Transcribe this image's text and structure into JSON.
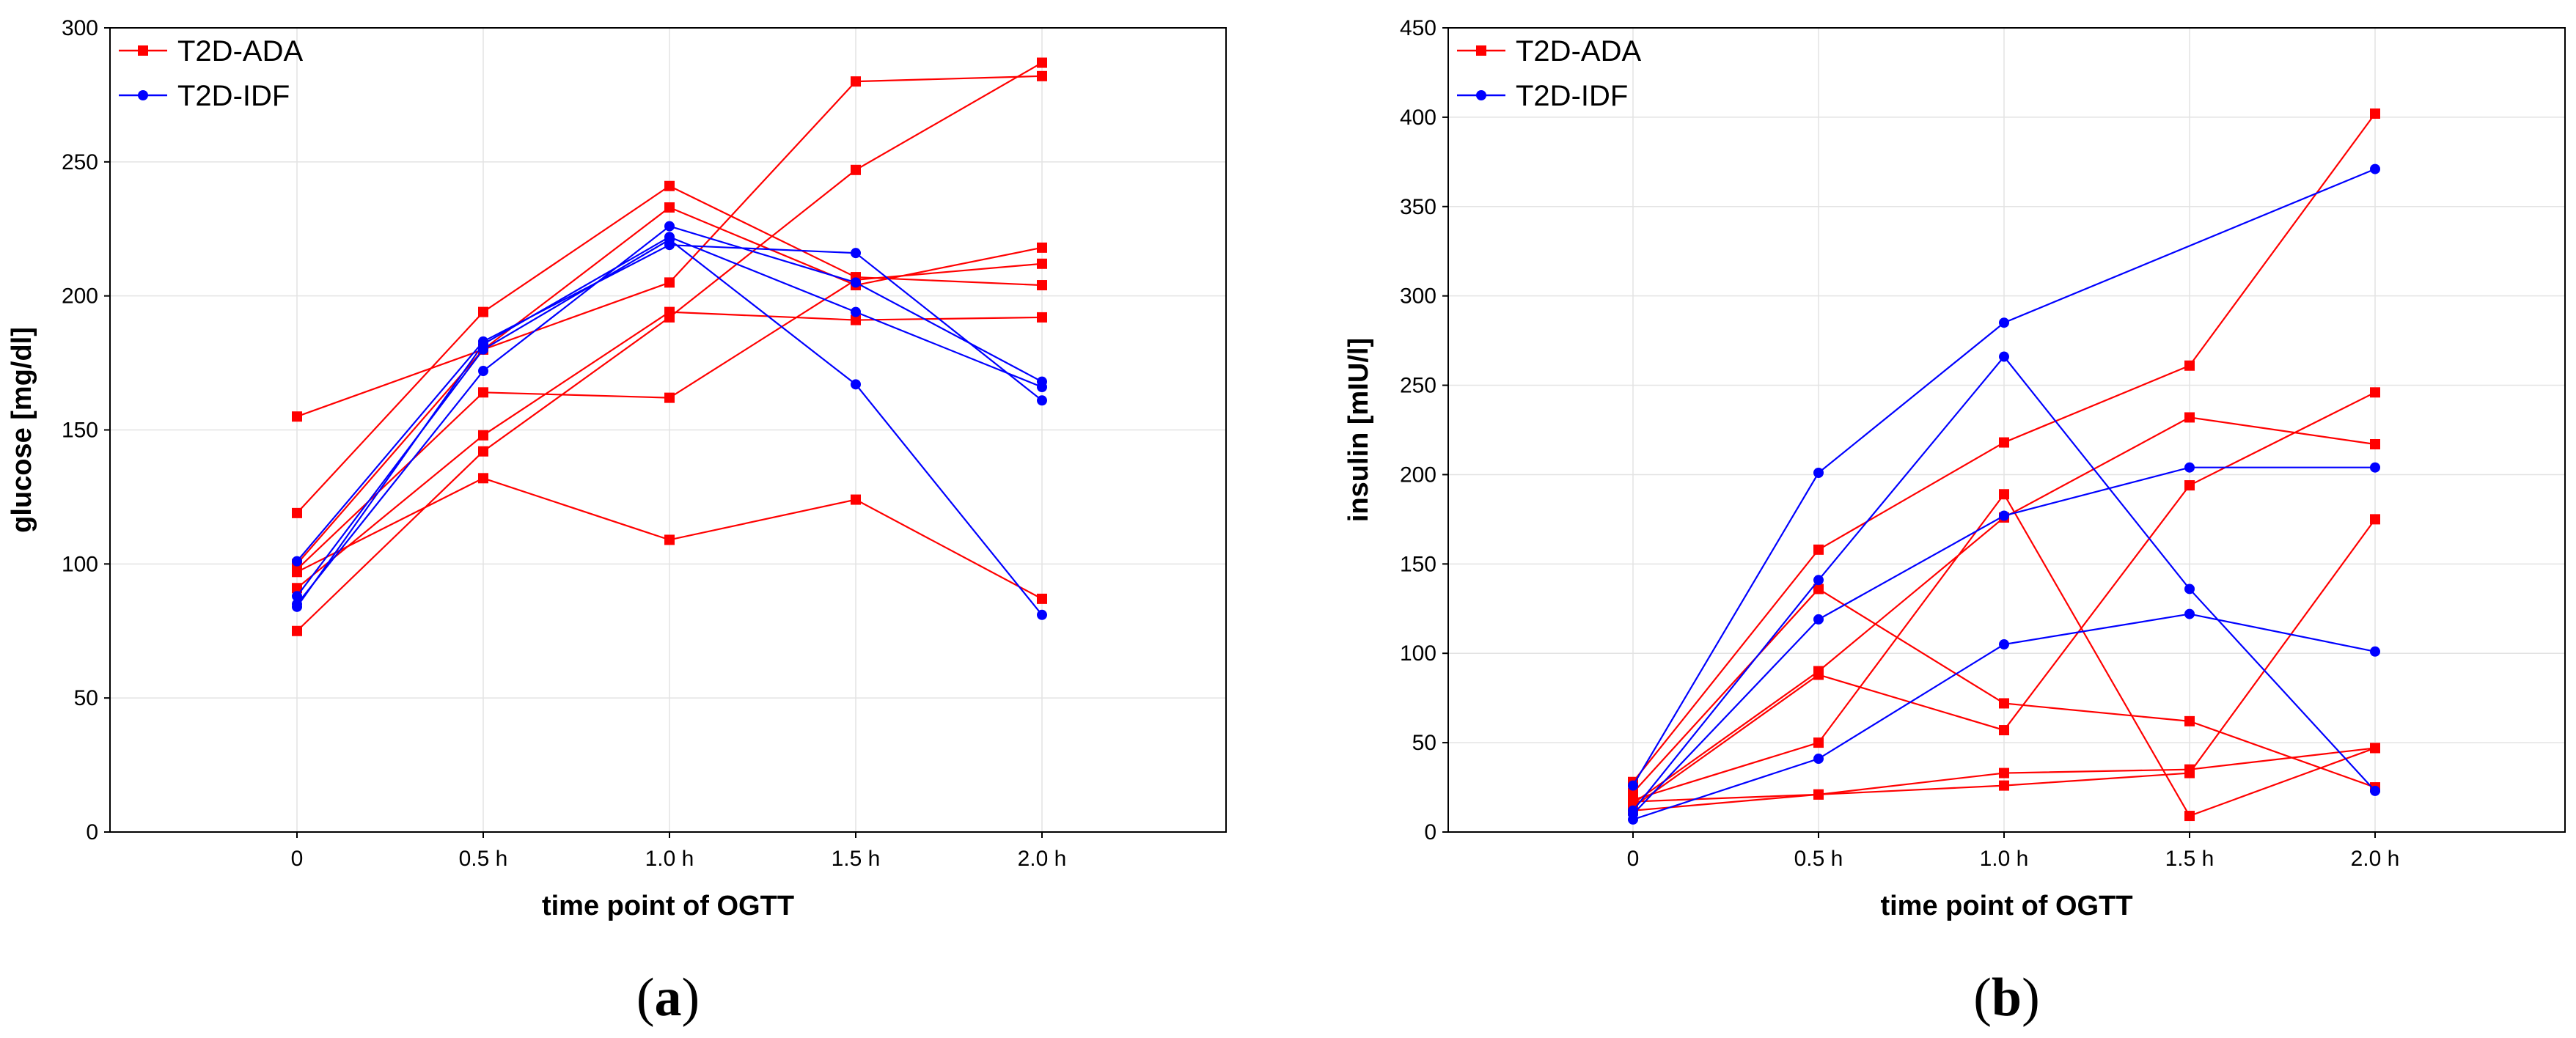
{
  "chart_data": [
    {
      "type": "line",
      "panel_label": "a",
      "caption_open": "(",
      "caption_close": ")",
      "xlabel": "time point of OGTT",
      "ylabel": "glucose [mg/dl]",
      "categories": [
        "0",
        "0.5 h",
        "1.0 h",
        "1.5 h",
        "2.0 h"
      ],
      "ylim": [
        0,
        300
      ],
      "yticks": [
        "0",
        "50",
        "100",
        "150",
        "200",
        "250",
        "300"
      ],
      "grid": true,
      "legend_position": "top-left",
      "legend": [
        {
          "name": "T2D-ADA",
          "color": "#ff0000",
          "marker": "square"
        },
        {
          "name": "T2D-IDF",
          "color": "#0000ff",
          "marker": "circle"
        }
      ],
      "series": [
        {
          "name": "T2D-ADA",
          "values": [
            155,
            180,
            205,
            280,
            282
          ]
        },
        {
          "name": "T2D-ADA",
          "values": [
            119,
            194,
            241,
            207,
            204
          ]
        },
        {
          "name": "T2D-ADA",
          "values": [
            98,
            164,
            162,
            206,
            212
          ]
        },
        {
          "name": "T2D-ADA",
          "values": [
            91,
            148,
            194,
            191,
            192
          ]
        },
        {
          "name": "T2D-ADA",
          "values": [
            75,
            142,
            192,
            247,
            287
          ]
        },
        {
          "name": "T2D-ADA",
          "values": [
            97,
            132,
            109,
            124,
            87
          ]
        },
        {
          "name": "T2D-ADA",
          "values": [
            100,
            180,
            233,
            204,
            218
          ]
        },
        {
          "name": "T2D-IDF",
          "values": [
            101,
            183,
            219,
            216,
            161
          ]
        },
        {
          "name": "T2D-IDF",
          "values": [
            88,
            180,
            221,
            167,
            81
          ]
        },
        {
          "name": "T2D-IDF",
          "values": [
            85,
            172,
            226,
            205,
            168
          ]
        },
        {
          "name": "T2D-IDF",
          "values": [
            84,
            182,
            222,
            194,
            166
          ]
        }
      ]
    },
    {
      "type": "line",
      "panel_label": "b",
      "caption_open": "(",
      "caption_close": ")",
      "xlabel": "time point of OGTT",
      "ylabel": "insulin [mIU/l]",
      "categories": [
        "0",
        "0.5 h",
        "1.0 h",
        "1.5 h",
        "2.0 h"
      ],
      "ylim": [
        0,
        450
      ],
      "yticks": [
        "0",
        "50",
        "100",
        "150",
        "200",
        "250",
        "300",
        "350",
        "400",
        "450"
      ],
      "grid": true,
      "legend_position": "top-left",
      "legend": [
        {
          "name": "T2D-ADA",
          "color": "#ff0000",
          "marker": "square"
        },
        {
          "name": "T2D-IDF",
          "color": "#0000ff",
          "marker": "circle"
        }
      ],
      "series": [
        {
          "name": "T2D-ADA",
          "values": [
            28,
            158,
            218,
            261,
            402
          ]
        },
        {
          "name": "T2D-ADA",
          "values": [
            22,
            136,
            72,
            62,
            25
          ]
        },
        {
          "name": "T2D-ADA",
          "values": [
            18,
            50,
            189,
            9,
            47
          ]
        },
        {
          "name": "T2D-ADA",
          "values": [
            16,
            90,
            176,
            232,
            217
          ]
        },
        {
          "name": "T2D-ADA",
          "values": [
            14,
            88,
            57,
            194,
            246
          ]
        },
        {
          "name": "T2D-ADA",
          "values": [
            17,
            21,
            33,
            35,
            47
          ]
        },
        {
          "name": "T2D-ADA",
          "values": [
            12,
            21,
            26,
            33,
            175
          ]
        },
        {
          "name": "T2D-IDF",
          "values": [
            26,
            201,
            285,
            null,
            371
          ]
        },
        {
          "name": "T2D-IDF",
          "values": [
            12,
            141,
            266,
            136,
            23
          ]
        },
        {
          "name": "T2D-IDF",
          "values": [
            10,
            119,
            177,
            204,
            204
          ]
        },
        {
          "name": "T2D-IDF",
          "values": [
            7,
            41,
            105,
            122,
            101
          ]
        }
      ]
    }
  ]
}
